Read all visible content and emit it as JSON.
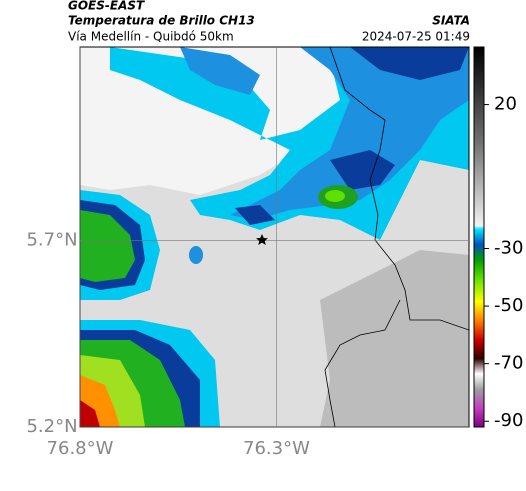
{
  "header": {
    "satellite": "GOES-EAST",
    "product": "Temperatura de Brillo CH13",
    "region": "Vía Medellín - Quibdó 50km",
    "source": "SIATA",
    "timestamp": "2024-07-25 01:49"
  },
  "map": {
    "lon_range": [
      -76.8,
      -75.81
    ],
    "lat_range": [
      5.2,
      6.22
    ],
    "lon_ticks": [
      {
        "value": -76.8,
        "label": "76.8°W"
      },
      {
        "value": -76.3,
        "label": "76.3°W"
      }
    ],
    "lat_ticks": [
      {
        "value": 5.7,
        "label": "5.7°N"
      },
      {
        "value": 5.2,
        "label": "5.2°N"
      }
    ],
    "grid": true
  },
  "colorbar": {
    "range": [
      -92,
      40
    ],
    "ticks": [
      20,
      -30,
      -50,
      -70,
      -90
    ]
  }
}
